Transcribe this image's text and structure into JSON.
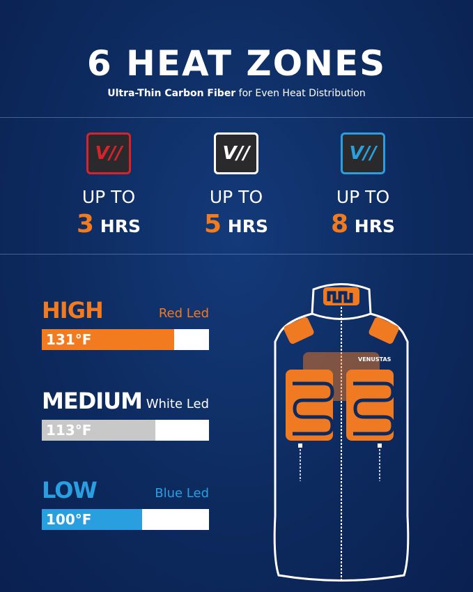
{
  "header": {
    "title": "6 HEAT ZONES",
    "subtitle_bold": "Ultra-Thin Carbon Fiber",
    "subtitle_rest": " for Even Heat Distribution"
  },
  "modes": [
    {
      "icon": "V//",
      "icon_name": "red-led-logo-icon",
      "color": "#d8232a",
      "up_to": "UP TO",
      "hours": "3",
      "unit": " HRS"
    },
    {
      "icon": "V//",
      "icon_name": "white-led-logo-icon",
      "color": "#ffffff",
      "up_to": "UP TO",
      "hours": "5",
      "unit": " HRS"
    },
    {
      "icon": "V//",
      "icon_name": "blue-led-logo-icon",
      "color": "#2a9fe0",
      "up_to": "UP TO",
      "hours": "8",
      "unit": " HRS"
    }
  ],
  "levels": [
    {
      "name": "HIGH",
      "led": "Red Led",
      "temp": "131°F",
      "color": "#f27a1f",
      "fill_fraction": 0.79
    },
    {
      "name": "MEDIUM",
      "led": "White Led",
      "temp": "113°F",
      "color": "#c8c8c8",
      "fill_fraction": 0.68
    },
    {
      "name": "LOW",
      "led": "Blue Led",
      "temp": "100°F",
      "color": "#2a9fe0",
      "fill_fraction": 0.6
    }
  ],
  "vest": {
    "brand": "VENUSTAS",
    "heating_color": "#f07a22"
  }
}
